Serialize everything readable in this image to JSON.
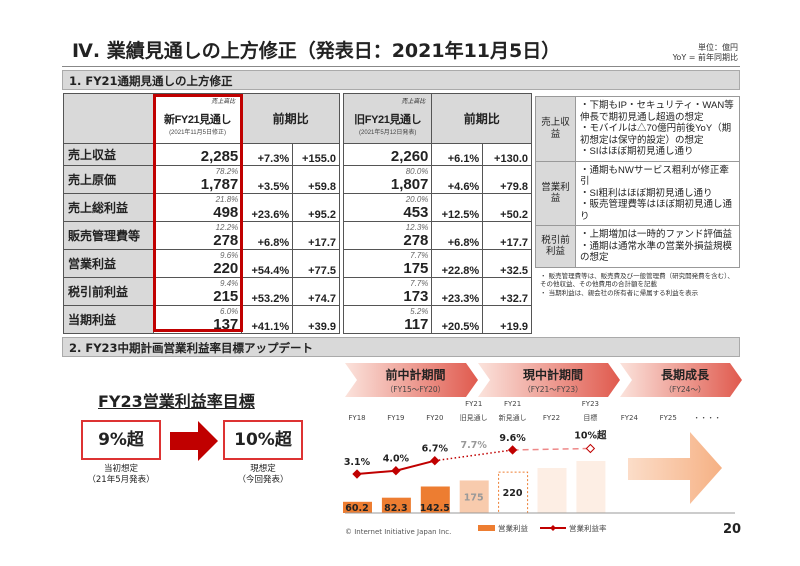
{
  "header": {
    "title": "Ⅳ. 業績見通しの上方修正（発表日：2021年11月5日）",
    "unit": "単位：億円",
    "yoy_note": "YoY = 前年同期比"
  },
  "section1": {
    "title": "1. FY21通期見通しの上方修正"
  },
  "table_new": {
    "ratio_label": "売上高比",
    "col_title": "新FY21見通し",
    "col_date": "(2021年11月5日修正)",
    "yoy_header": "前期比",
    "rows": [
      {
        "label": "売上収益",
        "ratio": "",
        "value": "2,285",
        "yoy_pct": "+7.3%",
        "yoy_abs": "+155.0"
      },
      {
        "label": "売上原価",
        "ratio": "78.2%",
        "value": "1,787",
        "yoy_pct": "+3.5%",
        "yoy_abs": "+59.8"
      },
      {
        "label": "売上総利益",
        "ratio": "21.8%",
        "value": "498",
        "yoy_pct": "+23.6%",
        "yoy_abs": "+95.2"
      },
      {
        "label": "販売管理費等",
        "ratio": "12.2%",
        "value": "278",
        "yoy_pct": "+6.8%",
        "yoy_abs": "+17.7"
      },
      {
        "label": "営業利益",
        "ratio": "9.6%",
        "value": "220",
        "yoy_pct": "+54.4%",
        "yoy_abs": "+77.5"
      },
      {
        "label": "税引前利益",
        "ratio": "9.4%",
        "value": "215",
        "yoy_pct": "+53.2%",
        "yoy_abs": "+74.7"
      },
      {
        "label": "当期利益",
        "ratio": "6.0%",
        "value": "137",
        "yoy_pct": "+41.1%",
        "yoy_abs": "+39.9"
      }
    ]
  },
  "table_old": {
    "ratio_label": "売上高比",
    "col_title": "旧FY21見通し",
    "col_date": "(2021年5月12日発表)",
    "yoy_header": "前期比",
    "rows": [
      {
        "ratio": "",
        "value": "2,260",
        "yoy_pct": "+6.1%",
        "yoy_abs": "+130.0"
      },
      {
        "ratio": "80.0%",
        "value": "1,807",
        "yoy_pct": "+4.6%",
        "yoy_abs": "+79.8"
      },
      {
        "ratio": "20.0%",
        "value": "453",
        "yoy_pct": "+12.5%",
        "yoy_abs": "+50.2"
      },
      {
        "ratio": "12.3%",
        "value": "278",
        "yoy_pct": "+6.8%",
        "yoy_abs": "+17.7"
      },
      {
        "ratio": "7.7%",
        "value": "175",
        "yoy_pct": "+22.8%",
        "yoy_abs": "+32.5"
      },
      {
        "ratio": "7.7%",
        "value": "173",
        "yoy_pct": "+23.3%",
        "yoy_abs": "+32.7"
      },
      {
        "ratio": "5.2%",
        "value": "117",
        "yoy_pct": "+20.5%",
        "yoy_abs": "+19.9"
      }
    ]
  },
  "comments": [
    {
      "category": "売上収益",
      "bullets": [
        "・下期もIP・セキュリティ・WAN等伸長で期初見通し超過の想定",
        "・モバイルは△70億円前後YoY（期初想定は保守的設定）の想定",
        "・SIはほぼ期初見通し通り"
      ]
    },
    {
      "category": "営業利益",
      "bullets": [
        "・通期もNWサービス粗利が修正牽引",
        "・SI粗利はほぼ期初見通し通り",
        "・販売管理費等はほぼ期初見通し通り"
      ]
    },
    {
      "category": "税引前利益",
      "bullets": [
        "・上期増加は一時的ファンド評価益",
        "・通期は通常水準の営業外損益規模の想定"
      ]
    }
  ],
  "notes": [
    "・ 販売管理費等は、販売費及び一般管理費（研究開発費を含む）、その他収益、その他費用の合計額を記載",
    "・ 当期利益は、親会社の所有者に帰属する利益を表示"
  ],
  "section2": {
    "title": "2. FY23中期計画営業利益率目標アップデート"
  },
  "goal": {
    "title": "FY23営業利益率目標",
    "before_value": "9%超",
    "before_caption_1": "当初想定",
    "before_caption_2": "（21年5月発表）",
    "after_value": "10%超",
    "after_caption_1": "現想定",
    "after_caption_2": "（今回発表）",
    "arrow_color": "#c00000"
  },
  "phases": [
    {
      "title": "前中計期間",
      "sub": "（FY15～FY20）"
    },
    {
      "title": "現中計期間",
      "sub": "（FY21～FY23）"
    },
    {
      "title": "長期成長",
      "sub": "（FY24～）"
    }
  ],
  "chart_data": {
    "type": "bar+line",
    "categories": [
      "FY18",
      "FY19",
      "FY20",
      "FY21 旧見通し",
      "FY21 新見通し",
      "FY22",
      "FY23 目標",
      "FY24",
      "FY25",
      "・・・・"
    ],
    "category_lines": [
      [
        "",
        "FY18"
      ],
      [
        "",
        "FY19"
      ],
      [
        "",
        "FY20"
      ],
      [
        "FY21",
        "旧見通し"
      ],
      [
        "FY21",
        "新見通し"
      ],
      [
        "",
        "FY22"
      ],
      [
        "FY23",
        "目標"
      ],
      [
        "",
        "FY24"
      ],
      [
        "",
        "FY25"
      ],
      [
        "",
        "・・・・"
      ]
    ],
    "series": [
      {
        "name": "営業利益",
        "type": "bar",
        "values": [
          60.2,
          82.3,
          142.5,
          175,
          220,
          null,
          null,
          null,
          null,
          null
        ],
        "labels": [
          "60.2",
          "82.3",
          "142.5",
          "175",
          "220",
          "",
          "",
          "",
          "",
          ""
        ]
      },
      {
        "name": "営業利益率",
        "type": "line",
        "values": [
          3.1,
          4.0,
          6.7,
          7.7,
          9.6,
          null,
          10,
          null,
          null,
          null
        ],
        "labels": [
          "3.1%",
          "4.0%",
          "6.7%",
          "7.7%",
          "9.6%",
          "",
          "10%超",
          "",
          "",
          ""
        ]
      }
    ],
    "colors": {
      "bar": "#ed7d31",
      "line": "#c00000"
    }
  },
  "footer": {
    "copyright": "© Internet Initiative Japan Inc.",
    "page": "20"
  }
}
